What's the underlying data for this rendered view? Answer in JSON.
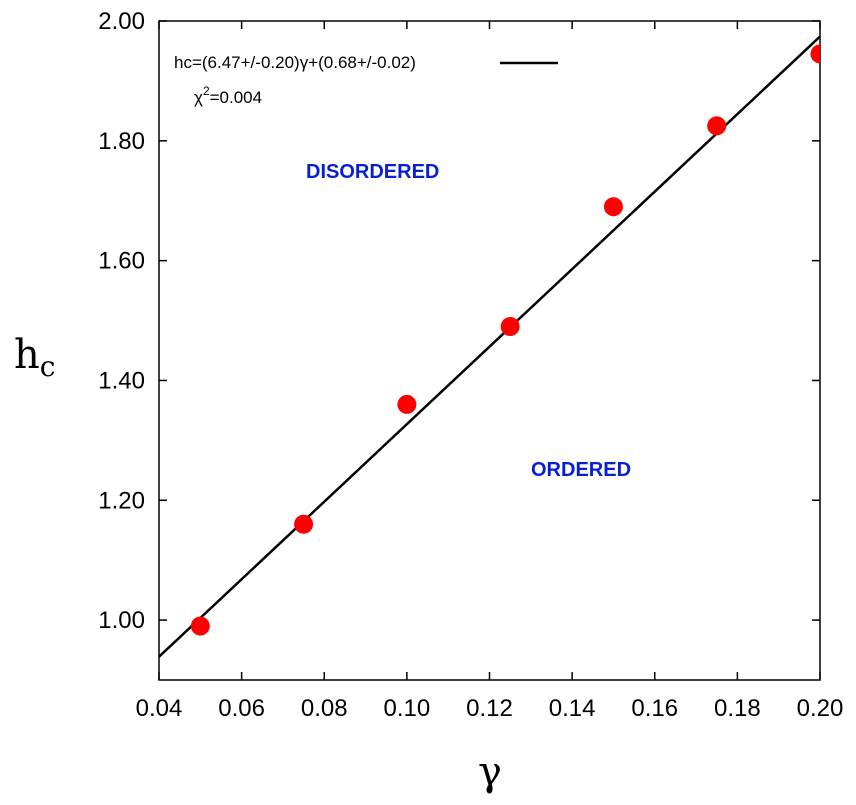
{
  "chart_data": {
    "type": "scatter",
    "xlabel": "γ",
    "ylabel": {
      "base": "h",
      "sub": "c"
    },
    "xlim": [
      0.04,
      0.2
    ],
    "ylim": [
      0.9,
      2.0
    ],
    "xticks": [
      0.04,
      0.06,
      0.08,
      0.1,
      0.12,
      0.14,
      0.16,
      0.18,
      0.2
    ],
    "xtick_labels": [
      "0.04",
      "0.06",
      "0.08",
      "0.10",
      "0.12",
      "0.14",
      "0.16",
      "0.18",
      "0.20"
    ],
    "yticks": [
      1.0,
      1.2,
      1.4,
      1.6,
      1.8,
      2.0
    ],
    "ytick_labels": [
      "1.00",
      "1.20",
      "1.40",
      "1.60",
      "1.80",
      "2.00"
    ],
    "grid": false,
    "legend_position": "top-left",
    "series": [
      {
        "kind": "points",
        "color": "#ff0000",
        "x": [
          0.05,
          0.075,
          0.1,
          0.125,
          0.15,
          0.175,
          0.2
        ],
        "y": [
          0.99,
          1.16,
          1.36,
          1.49,
          1.69,
          1.825,
          1.945
        ]
      },
      {
        "kind": "fit-line",
        "name": "hc=(6.47+/-0.20)γ+(0.68+/-0.02)",
        "color": "#000000",
        "slope": 6.47,
        "intercept": 0.68
      }
    ],
    "legend_entries": [
      "hc=(6.47+/-0.20)γ+(0.68+/-0.02)"
    ],
    "annotations": {
      "chi_symbol": "χ",
      "chi_exponent": "2",
      "chi_value": "=0.004",
      "disordered": "DISORDERED",
      "ordered": "ORDERED"
    },
    "annotation_color": "#0a1ed6"
  }
}
